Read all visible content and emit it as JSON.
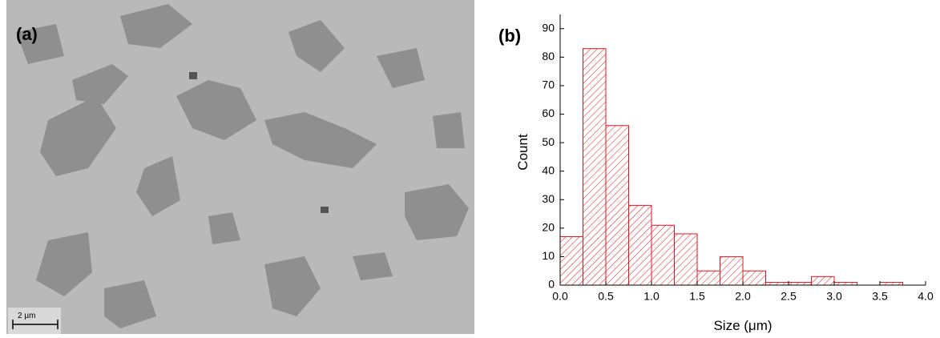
{
  "image_panel": {
    "label": "(a)",
    "scale_bar": "2 µm"
  },
  "chart_data": {
    "type": "histogram",
    "panel_label": "(b)",
    "x_label": "Size (μm)",
    "y_label": "Count",
    "bins": [
      0,
      0.25,
      0.5,
      0.75,
      1.0,
      1.25,
      1.5,
      1.75,
      2.0,
      2.25,
      2.5,
      2.75,
      3.0,
      3.25,
      3.5,
      3.75
    ],
    "values": [
      17,
      83,
      56,
      28,
      21,
      18,
      5,
      10,
      5,
      1,
      1,
      3,
      1,
      0,
      1
    ],
    "color": "#e8131b",
    "xlim": [
      0,
      4
    ],
    "ylim": [
      0,
      95
    ],
    "xticks": [
      {
        "value": 0,
        "label": "0.0"
      },
      0.5,
      {
        "value": 1,
        "label": "1.0"
      },
      1.5,
      {
        "value": 2,
        "label": "2.0"
      },
      2.5,
      {
        "value": 3,
        "label": "3.0"
      },
      3.5,
      {
        "value": 4,
        "label": "4.0"
      }
    ],
    "yticks": [
      0,
      10,
      20,
      30,
      40,
      50,
      60,
      70,
      80,
      90
    ]
  }
}
